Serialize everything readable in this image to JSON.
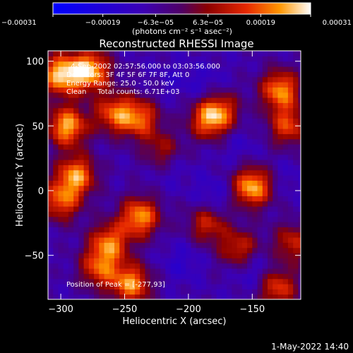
{
  "chart_data": {
    "type": "heatmap",
    "title": "Reconstructed RHESSI Image",
    "xlabel": "Heliocentric X (arcsec)",
    "ylabel": "Heliocentric Y (arcsec)",
    "xlim": [
      -310,
      -112
    ],
    "ylim": [
      -84,
      108
    ],
    "x_ticks": [
      -300,
      -250,
      -200,
      -150
    ],
    "y_ticks": [
      100,
      50,
      0,
      -50
    ],
    "x_tick_labels": [
      "−300",
      "−250",
      "−200",
      "−150"
    ],
    "y_tick_labels": [
      "100",
      "50",
      "0",
      "−50"
    ],
    "colorbar": {
      "min": -0.00031,
      "max": 0.00031,
      "ticks": [
        -0.00031,
        -0.00019,
        -6.3e-05,
        6.3e-05,
        0.00019,
        0.00031
      ],
      "tick_labels": [
        "−0.00031",
        "−0.00019",
        "−6.3e−05",
        "6.3e−05",
        "0.00019",
        "0.00031"
      ],
      "unit_label": "(photons cm⁻² s⁻¹ asec⁻²)"
    },
    "annotations": [
      "4-Sep-2002 02:57:56.000 to 03:03:56.000",
      "Detectors: 3F 4F 5F 6F 7F 8F, Att 0",
      "Energy Range: 25.0 - 50.0 keV",
      "Clean     Total counts: 6.71E+03"
    ],
    "peak_label": "Position of Peak = [-277,93]",
    "peak_position": [
      -277,
      93
    ],
    "hot_spots": [
      {
        "x": -300,
        "y": 90,
        "value": 0.00031
      },
      {
        "x": -277,
        "y": 93,
        "value": 0.00031
      },
      {
        "x": -295,
        "y": 50,
        "value": 0.00029
      },
      {
        "x": -258,
        "y": 60,
        "value": 0.0002
      },
      {
        "x": -238,
        "y": 56,
        "value": 0.0002
      },
      {
        "x": -185,
        "y": 55,
        "value": 0.00018
      },
      {
        "x": -175,
        "y": 62,
        "value": 0.00016
      },
      {
        "x": -128,
        "y": 78,
        "value": 0.00026
      },
      {
        "x": -122,
        "y": 50,
        "value": 0.00018
      },
      {
        "x": -288,
        "y": 12,
        "value": 0.00026
      },
      {
        "x": -300,
        "y": -8,
        "value": 0.0002
      },
      {
        "x": -150,
        "y": 3,
        "value": 0.0003
      },
      {
        "x": -238,
        "y": -20,
        "value": 0.00027
      },
      {
        "x": -262,
        "y": -40,
        "value": 0.00022
      },
      {
        "x": -185,
        "y": -25,
        "value": 0.00015
      },
      {
        "x": -160,
        "y": -45,
        "value": 0.00016
      },
      {
        "x": -118,
        "y": -40,
        "value": 0.00014
      },
      {
        "x": -245,
        "y": -72,
        "value": 0.00026
      },
      {
        "x": -270,
        "y": -60,
        "value": 0.00018
      },
      {
        "x": -130,
        "y": -75,
        "value": 0.00018
      },
      {
        "x": -220,
        "y": 30,
        "value": 0.00012
      }
    ],
    "cold_spots": [
      {
        "x": -185,
        "y": 80,
        "value": -0.00015
      },
      {
        "x": -215,
        "y": 20,
        "value": -0.00016
      },
      {
        "x": -160,
        "y": 35,
        "value": -0.00013
      },
      {
        "x": -180,
        "y": -5,
        "value": -0.00017
      },
      {
        "x": -205,
        "y": -55,
        "value": -0.00015
      },
      {
        "x": -150,
        "y": -60,
        "value": -0.00018
      },
      {
        "x": -122,
        "y": 10,
        "value": -0.00012
      },
      {
        "x": -210,
        "y": 85,
        "value": -0.00012
      }
    ]
  },
  "footer": {
    "timestamp": "1-May-2022 14:40"
  }
}
